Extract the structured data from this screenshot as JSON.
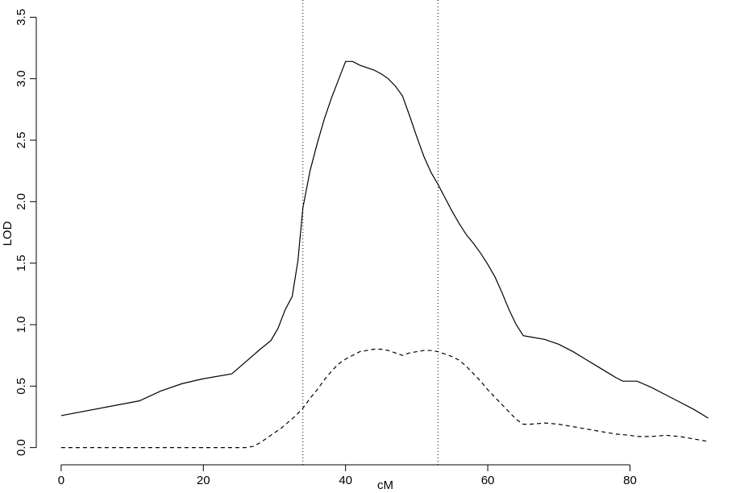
{
  "chart_data": {
    "type": "line",
    "x_label": "cM",
    "y_label": "LOD",
    "xlim": [
      -3.5,
      94.8
    ],
    "ylim": [
      -0.14,
      3.64
    ],
    "xticks": [
      0,
      20,
      40,
      60,
      80
    ],
    "yticks": [
      {
        "value": 0,
        "label": "0.0"
      },
      0.5,
      {
        "value": 1,
        "label": "1.0"
      },
      1.5,
      {
        "value": 2,
        "label": "2.0"
      },
      2.5,
      {
        "value": 3,
        "label": "3.0"
      },
      3.5
    ],
    "vlines": [
      34,
      53
    ],
    "series": [
      {
        "color": "#000000",
        "dash": "solid",
        "x": [
          0,
          11,
          14,
          17,
          20,
          24,
          26,
          28,
          29.5,
          30.5,
          31.5,
          32.5,
          33.3,
          34,
          35,
          36,
          37,
          38,
          39,
          40,
          41,
          42,
          43,
          44,
          45,
          46,
          47,
          48,
          49,
          50,
          51,
          52,
          53,
          54,
          55,
          56,
          57,
          58,
          59,
          60,
          61,
          62,
          63,
          64,
          65,
          66,
          68,
          70,
          72,
          74,
          76,
          78,
          79,
          81,
          83,
          85,
          87,
          89,
          91
        ],
        "values": [
          0.26,
          0.38,
          0.46,
          0.52,
          0.56,
          0.6,
          0.7,
          0.8,
          0.87,
          0.97,
          1.12,
          1.23,
          1.52,
          1.95,
          2.25,
          2.47,
          2.67,
          2.84,
          2.99,
          3.14,
          3.14,
          3.11,
          3.09,
          3.07,
          3.04,
          3.0,
          2.94,
          2.86,
          2.7,
          2.53,
          2.37,
          2.24,
          2.14,
          2.03,
          1.92,
          1.82,
          1.73,
          1.66,
          1.58,
          1.49,
          1.39,
          1.26,
          1.12,
          1.0,
          0.91,
          0.9,
          0.88,
          0.84,
          0.78,
          0.71,
          0.64,
          0.57,
          0.54,
          0.54,
          0.49,
          0.43,
          0.37,
          0.31,
          0.24
        ]
      },
      {
        "color": "#000000",
        "dash": "dashed",
        "x": [
          0,
          26,
          27,
          28,
          29,
          30,
          31,
          32,
          33,
          34,
          35,
          36,
          37,
          38,
          39,
          40,
          41,
          42,
          43,
          44,
          45,
          46,
          47,
          48,
          49,
          50,
          51,
          52,
          53,
          54,
          55,
          56,
          57,
          58,
          59,
          60,
          61,
          62,
          63,
          64,
          65,
          66,
          68,
          70,
          72,
          74,
          76,
          78,
          80,
          81,
          83,
          85,
          87,
          89,
          91
        ],
        "values": [
          0,
          0,
          0.01,
          0.04,
          0.08,
          0.12,
          0.16,
          0.21,
          0.26,
          0.32,
          0.4,
          0.47,
          0.55,
          0.62,
          0.68,
          0.72,
          0.75,
          0.78,
          0.79,
          0.8,
          0.8,
          0.79,
          0.77,
          0.75,
          0.77,
          0.78,
          0.79,
          0.79,
          0.78,
          0.76,
          0.74,
          0.71,
          0.66,
          0.6,
          0.54,
          0.47,
          0.41,
          0.35,
          0.29,
          0.23,
          0.19,
          0.19,
          0.2,
          0.19,
          0.17,
          0.15,
          0.13,
          0.11,
          0.1,
          0.09,
          0.09,
          0.1,
          0.09,
          0.07,
          0.05
        ]
      }
    ]
  }
}
